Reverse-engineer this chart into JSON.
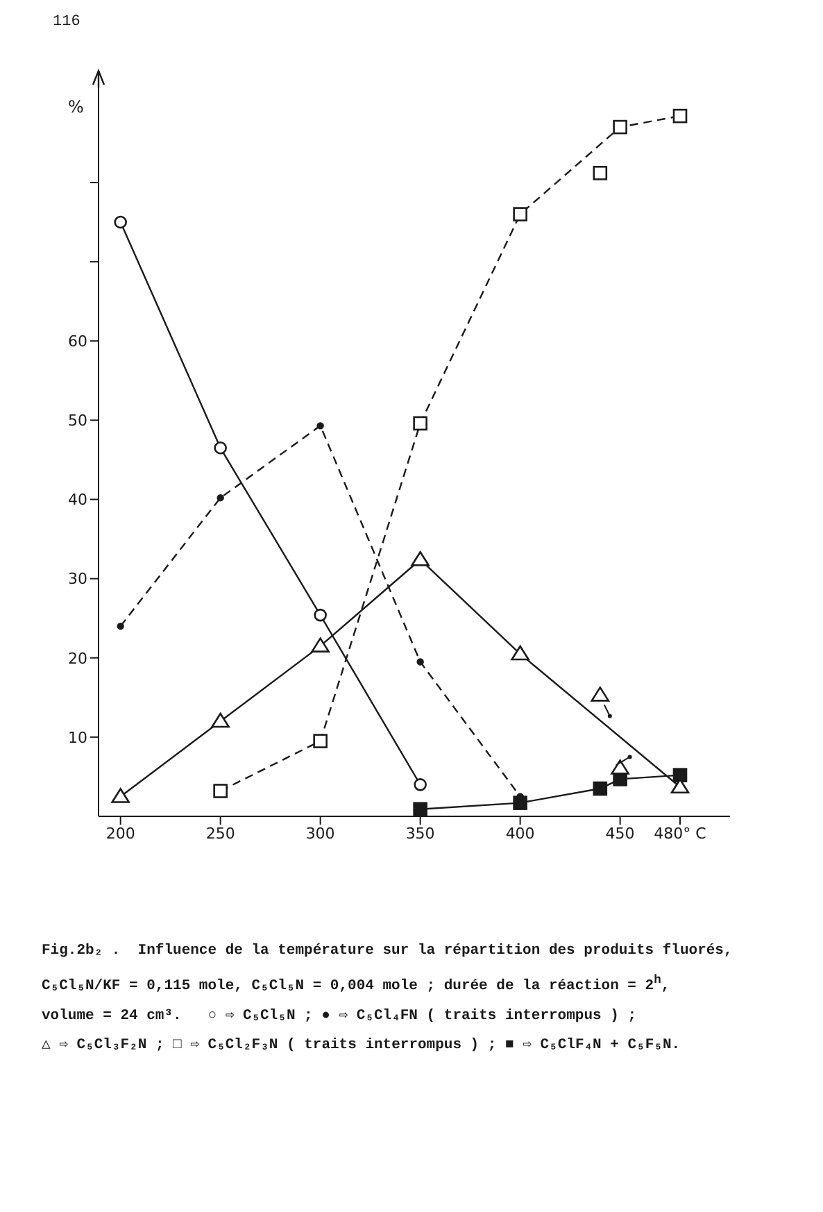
{
  "chart_data": {
    "type": "line",
    "title": "Fig.2b₂ .  Influence de la température sur la répartition des produits fluorés,",
    "ylabel": "%",
    "xlim": [
      189,
      505
    ],
    "xticks": [
      200,
      250,
      300,
      350,
      400,
      450,
      {
        "value": 480,
        "label": "480° C"
      }
    ],
    "ylim": [
      0,
      92
    ],
    "yticks": [
      10,
      20,
      30,
      40,
      50,
      60,
      {
        "value": 70,
        "label": null
      },
      {
        "value": 80,
        "label": null
      }
    ],
    "series": [
      {
        "color": "#1a1a1a",
        "marker": "circle",
        "line_style": "solid",
        "x": [
          200,
          250,
          300,
          350
        ],
        "values": [
          75,
          46.5,
          25.4,
          4
        ]
      },
      {
        "color": "#1a1a1a",
        "marker": "circle",
        "line_style": "dashed",
        "x": [
          200,
          250,
          300,
          350,
          400
        ],
        "values": [
          24,
          40.2,
          49.3,
          19.5,
          2.5
        ]
      },
      {
        "color": "#1a1a1a",
        "marker": "triangle",
        "line_style": "solid",
        "x": [
          200,
          250,
          300,
          350,
          400,
          480
        ],
        "values": [
          2.5,
          12,
          21.5,
          32.4,
          20.5,
          3.7
        ]
      },
      {
        "type": "scatter",
        "color": "#1a1a1a",
        "marker": "triangle",
        "x": [
          440,
          450
        ],
        "values": [
          15.3,
          6.1
        ]
      },
      {
        "color": "#1a1a1a",
        "marker": "square",
        "line_style": "dashed",
        "x": [
          250,
          300,
          350,
          400,
          450,
          480
        ],
        "values": [
          3.2,
          9.5,
          49.6,
          76,
          87,
          88.4
        ]
      },
      {
        "type": "scatter",
        "color": "#1a1a1a",
        "marker": "square",
        "x": [
          440
        ],
        "values": [
          81.2
        ]
      },
      {
        "color": "#1a1a1a",
        "marker": "square",
        "line_style": "solid",
        "x": [
          350,
          400,
          440,
          450,
          480
        ],
        "values": [
          0.9,
          1.7,
          3.5,
          4.7,
          5.2
        ]
      }
    ],
    "annotations": [
      "116",
      "C₅Cl₅N/KF = 0,115 mole, C₅Cl₅N = 0,004 mole ; durée de la réaction = 2$^{h}$,",
      "volume = 24 cm³.   ○ ⇨ C₅Cl₅N ; ● ⇨ C₅Cl₄FN ( traits interrompus ) ;",
      "△ ⇨ C₅Cl₃F₂N ; □ ⇨ C₅Cl₂F₃N ( traits interrompus ) ; ■ ⇨ C₅ClF₄N + C₅F₅N."
    ]
  }
}
